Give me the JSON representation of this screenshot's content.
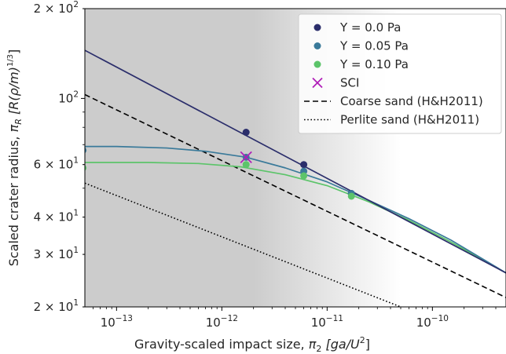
{
  "chart_data": {
    "type": "scatter",
    "x_scale": "log",
    "y_scale": "log",
    "xlim": [
      5e-14,
      5e-10
    ],
    "ylim": [
      20,
      200
    ],
    "xlabel_main": "Gravity-scaled impact size, ",
    "xlabel_sym": "π",
    "xlabel_sub": "2",
    "xlabel_unit": " [ga/U",
    "xlabel_sup": "2",
    "xlabel_end": "]",
    "ylabel_main": "Scaled crater radius, ",
    "ylabel_sym": "π",
    "ylabel_sub": "R",
    "ylabel_unit": " [R(ρ/m)",
    "ylabel_sup": "1/3",
    "ylabel_end": "]",
    "x_ticks": [
      {
        "value": 1e-13,
        "base": "10",
        "exp": "−13"
      },
      {
        "value": 1e-12,
        "base": "10",
        "exp": "−12"
      },
      {
        "value": 1e-11,
        "base": "10",
        "exp": "−11"
      },
      {
        "value": 1e-10,
        "base": "10",
        "exp": "−10"
      }
    ],
    "y_ticks": [
      {
        "value": 20,
        "mant": "2 × ",
        "base": "10",
        "exp": "1"
      },
      {
        "value": 30,
        "mant": "3 × ",
        "base": "10",
        "exp": "1"
      },
      {
        "value": 40,
        "mant": "4 × ",
        "base": "10",
        "exp": "1"
      },
      {
        "value": 60,
        "mant": "6 × ",
        "base": "10",
        "exp": "1"
      },
      {
        "value": 100,
        "mant": "",
        "base": "10",
        "exp": "2"
      },
      {
        "value": 200,
        "mant": "2 × ",
        "base": "10",
        "exp": "2"
      }
    ],
    "shaded_band": {
      "from": 5e-14,
      "to": 5e-11,
      "fade_start": 2e-12,
      "color": "#cccccc"
    },
    "series": [
      {
        "name": "Y = 0.0 Pa",
        "color": "#2b2e6b",
        "points": [
          [
            1.7e-12,
            77
          ],
          [
            6e-12,
            60
          ],
          [
            1.7e-11,
            48
          ]
        ],
        "fit": [
          [
            5e-14,
            145
          ],
          [
            5e-10,
            26
          ]
        ]
      },
      {
        "name": "Y = 0.05 Pa",
        "color": "#3a7a9a",
        "points": [
          [
            4.8e-14,
            67
          ],
          [
            1.7e-12,
            63.5
          ],
          [
            6e-12,
            57
          ],
          [
            1.7e-11,
            48
          ]
        ],
        "fit": [
          [
            5e-14,
            69
          ],
          [
            1e-13,
            69
          ],
          [
            3e-13,
            68.2
          ],
          [
            7e-13,
            66.5
          ],
          [
            1.7e-12,
            63.5
          ],
          [
            4e-12,
            58.5
          ],
          [
            1e-11,
            52.5
          ],
          [
            2.5e-11,
            45.5
          ],
          [
            6e-11,
            39.5
          ],
          [
            1.5e-10,
            33.5
          ],
          [
            5e-10,
            26
          ]
        ]
      },
      {
        "name": "Y = 0.10 Pa",
        "color": "#5cc46a",
        "points": [
          [
            4.8e-14,
            58.5
          ],
          [
            1.7e-12,
            60
          ],
          [
            6e-12,
            55
          ],
          [
            1.7e-11,
            47
          ]
        ],
        "fit": [
          [
            5e-14,
            61
          ],
          [
            2e-13,
            61
          ],
          [
            6e-13,
            60.5
          ],
          [
            1.5e-12,
            59
          ],
          [
            4e-12,
            55.5
          ],
          [
            1e-11,
            51
          ],
          [
            2.5e-11,
            45
          ],
          [
            6e-11,
            39
          ],
          [
            1.5e-10,
            33
          ],
          [
            5e-10,
            26
          ]
        ]
      }
    ],
    "sci_marker": {
      "name": "SCI",
      "color": "#b01eb8",
      "x": 1.7e-12,
      "y": 63.5
    },
    "reference_lines": [
      {
        "name": "Coarse sand (H&H2011)",
        "style": "dashed",
        "color": "#000000",
        "points": [
          [
            5e-14,
            103
          ],
          [
            5e-10,
            21.5
          ]
        ]
      },
      {
        "name": "Perlite sand (H&H2011)",
        "style": "dotted",
        "color": "#000000",
        "points": [
          [
            5e-14,
            52
          ],
          [
            5e-11,
            20
          ]
        ]
      }
    ],
    "legend_position": "top-right",
    "grid": false
  }
}
